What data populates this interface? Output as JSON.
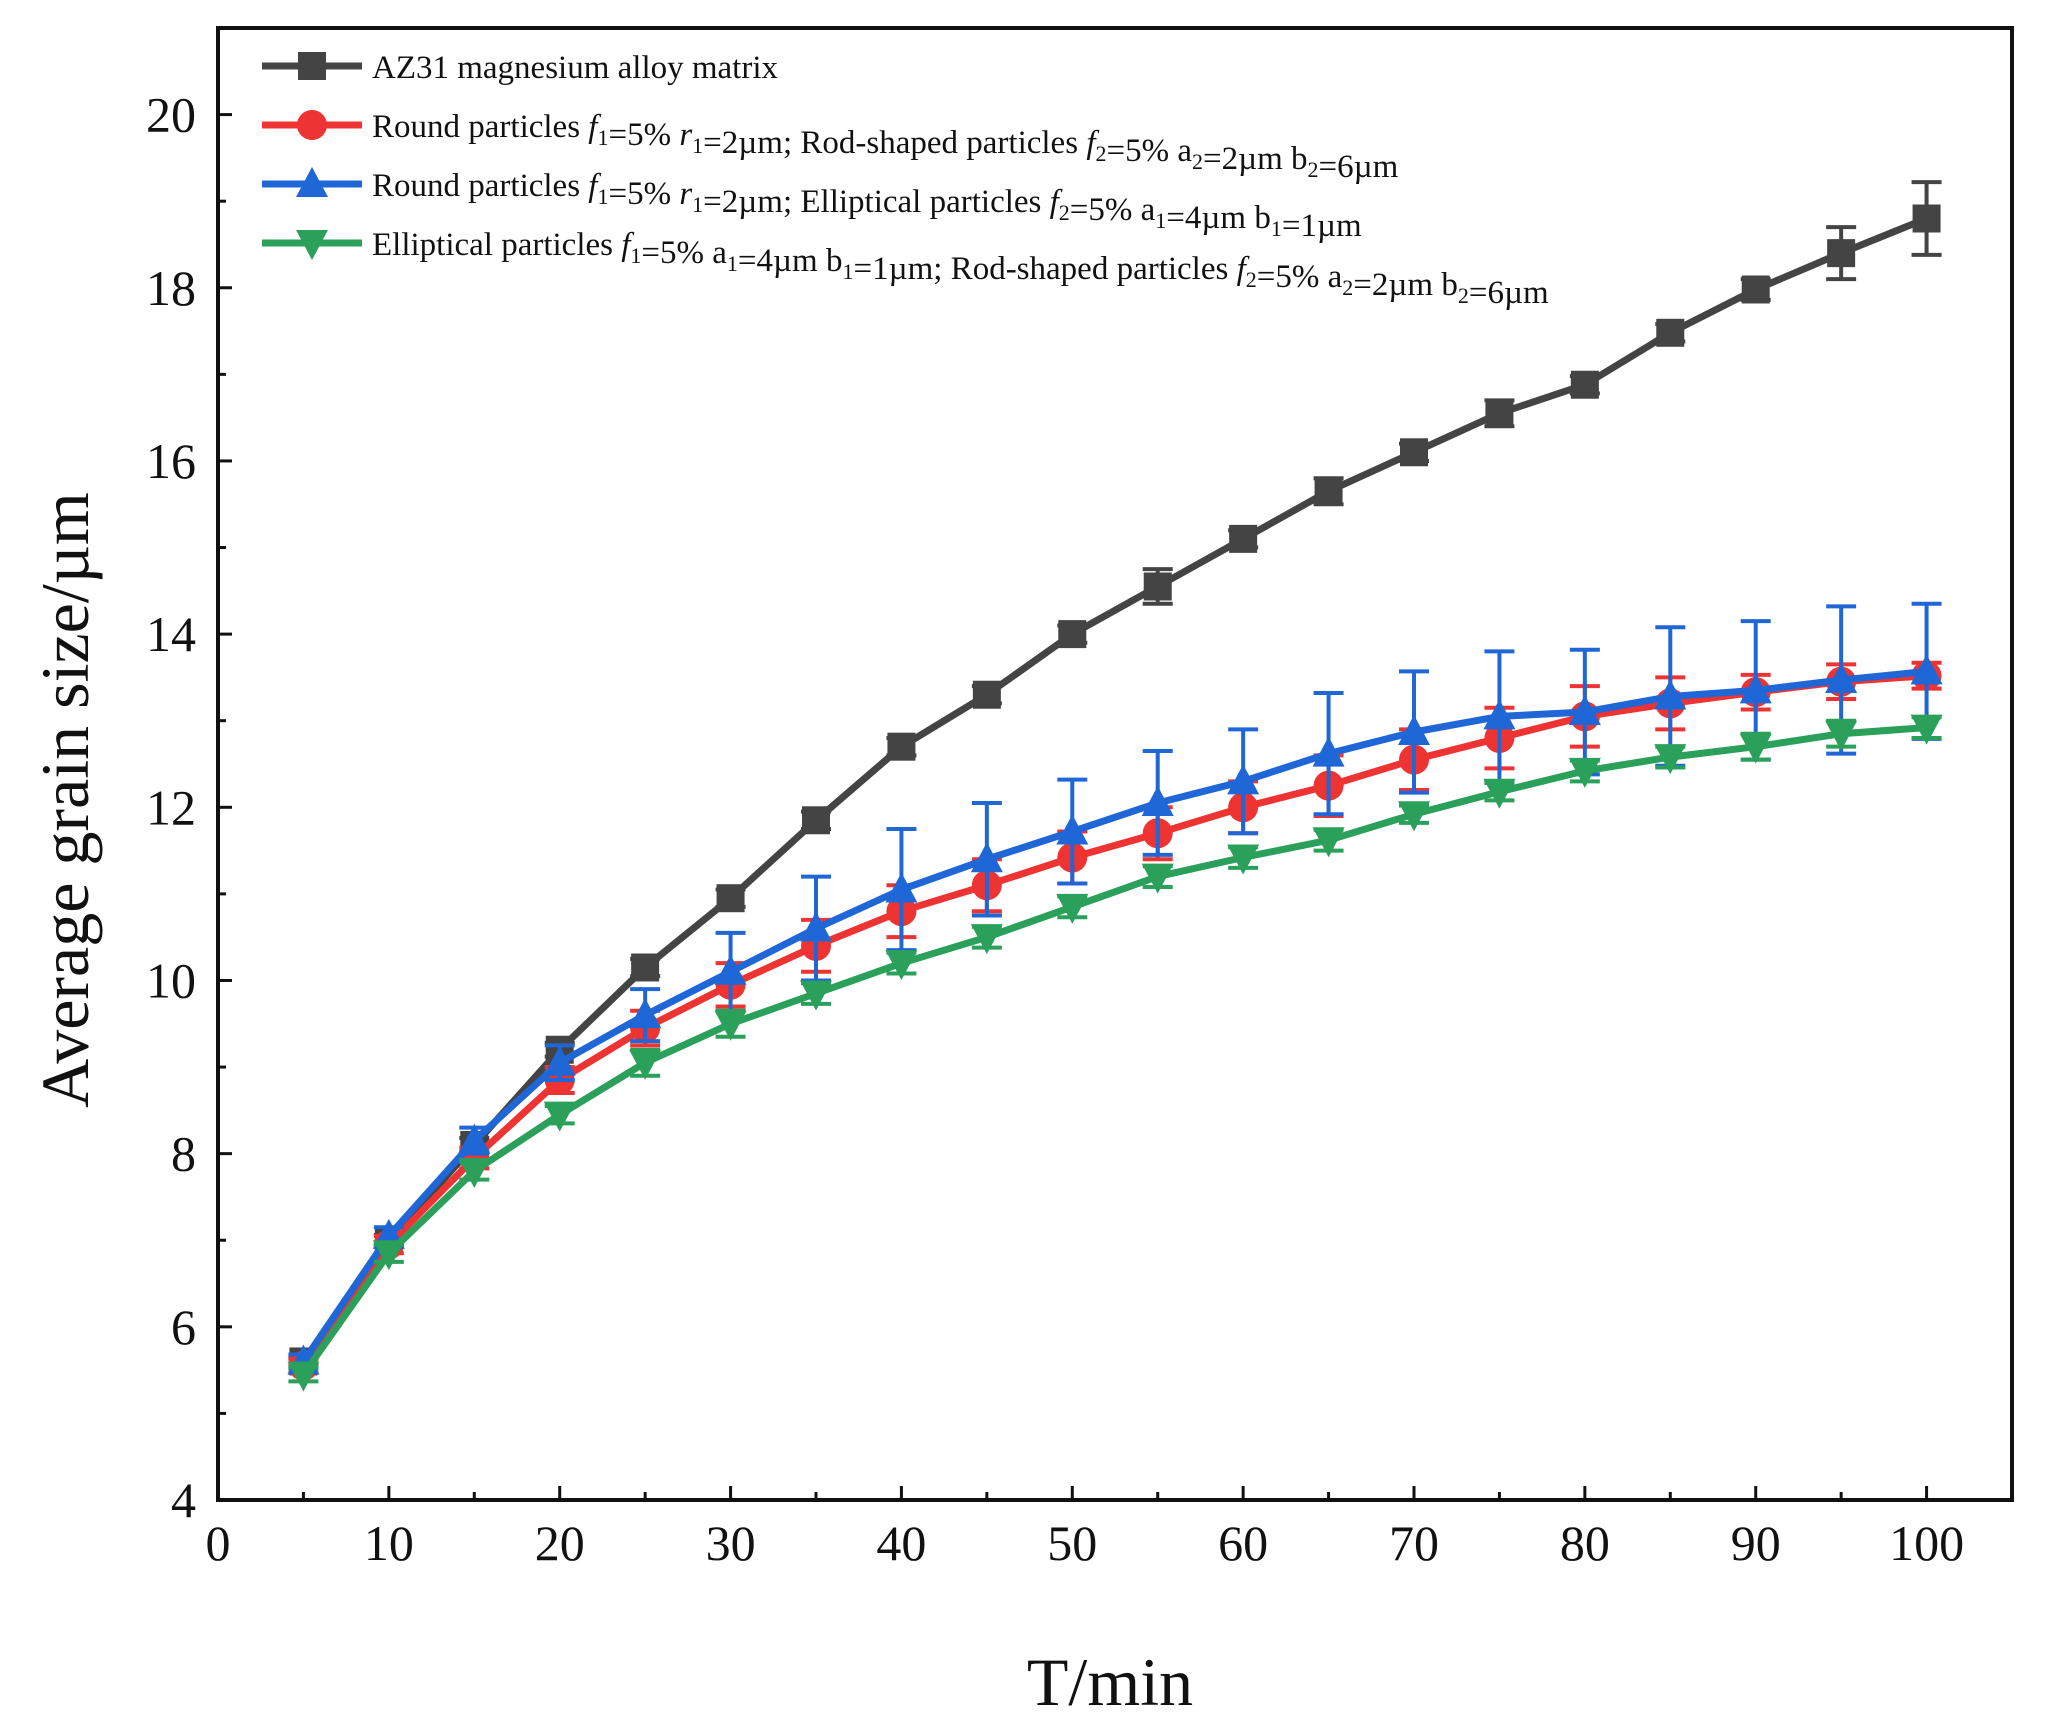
{
  "chart_data": {
    "type": "line",
    "title": "",
    "xlabel": "T/min",
    "ylabel": "Average grain size/µm",
    "xlim": [
      0,
      105
    ],
    "ylim": [
      4,
      21
    ],
    "xticks": [
      0,
      10,
      20,
      30,
      40,
      50,
      60,
      70,
      80,
      90,
      100
    ],
    "yticks": [
      4,
      6,
      8,
      10,
      12,
      14,
      16,
      18,
      20
    ],
    "legend_position": "top-left",
    "x": [
      5,
      10,
      15,
      20,
      25,
      30,
      35,
      40,
      45,
      50,
      55,
      60,
      65,
      70,
      75,
      80,
      85,
      90,
      95,
      100
    ],
    "series": [
      {
        "name": "AZ31 magnesium alloy matrix",
        "legend": [
          {
            "t": "AZ31 magnesium alloy matrix"
          }
        ],
        "color": "#444444",
        "marker": "square",
        "values": [
          5.6,
          7.0,
          8.1,
          9.2,
          10.15,
          10.95,
          11.85,
          12.7,
          13.3,
          14.0,
          14.55,
          15.1,
          15.65,
          16.1,
          16.55,
          16.88,
          17.48,
          17.98,
          18.4,
          18.8
        ],
        "errors": [
          0.05,
          0.06,
          0.08,
          0.08,
          0.1,
          0.1,
          0.1,
          0.1,
          0.1,
          0.1,
          0.2,
          0.1,
          0.15,
          0.1,
          0.15,
          0.1,
          0.1,
          0.12,
          0.3,
          0.42
        ]
      },
      {
        "name": "Round particles f1=5% r1=2µm; Rod-shaped particles f2=5% a2=2µm b2=6µm",
        "legend": [
          {
            "t": "Round particles "
          },
          {
            "t": "f",
            "i": true
          },
          {
            "t": "1",
            "sub": true
          },
          {
            "t": "=5% "
          },
          {
            "t": "r",
            "i": true
          },
          {
            "t": "1",
            "sub": true
          },
          {
            "t": "=2µm; Rod-shaped particles "
          },
          {
            "t": "f",
            "i": true
          },
          {
            "t": "2",
            "sub": true
          },
          {
            "t": "=5% a"
          },
          {
            "t": "2",
            "sub": true
          },
          {
            "t": "=2µm b"
          },
          {
            "t": "2",
            "sub": true
          },
          {
            "t": "=6µm"
          }
        ],
        "color": "#ee3333",
        "marker": "circle",
        "values": [
          5.55,
          6.95,
          7.95,
          8.85,
          9.45,
          9.95,
          10.4,
          10.8,
          11.1,
          11.42,
          11.7,
          12.0,
          12.25,
          12.55,
          12.8,
          13.05,
          13.2,
          13.33,
          13.45,
          13.52
        ],
        "errors": [
          0.08,
          0.1,
          0.12,
          0.15,
          0.2,
          0.25,
          0.3,
          0.3,
          0.3,
          0.3,
          0.3,
          0.3,
          0.35,
          0.35,
          0.35,
          0.35,
          0.3,
          0.2,
          0.2,
          0.15
        ]
      },
      {
        "name": "Round particles f1=5% r1=2µm; Elliptical particles f2=5% a1=4µm b1=1µm",
        "legend": [
          {
            "t": "Round particles "
          },
          {
            "t": "f",
            "i": true
          },
          {
            "t": "1",
            "sub": true
          },
          {
            "t": "=5% "
          },
          {
            "t": "r",
            "i": true
          },
          {
            "t": "1",
            "sub": true
          },
          {
            "t": "=2µm; Elliptical particles "
          },
          {
            "t": "f",
            "i": true
          },
          {
            "t": "2",
            "sub": true
          },
          {
            "t": "=5% a"
          },
          {
            "t": "1",
            "sub": true
          },
          {
            "t": "=4µm b"
          },
          {
            "t": "1",
            "sub": true
          },
          {
            "t": "=1µm"
          }
        ],
        "color": "#1f66d6",
        "marker": "triangle-up",
        "values": [
          5.6,
          7.05,
          8.15,
          9.05,
          9.6,
          10.1,
          10.6,
          11.05,
          11.4,
          11.72,
          12.05,
          12.3,
          12.62,
          12.87,
          13.05,
          13.1,
          13.28,
          13.35,
          13.47,
          13.57
        ],
        "errors": [
          0.08,
          0.1,
          0.15,
          0.2,
          0.3,
          0.45,
          0.6,
          0.7,
          0.65,
          0.6,
          0.6,
          0.6,
          0.7,
          0.7,
          0.75,
          0.72,
          0.8,
          0.8,
          0.85,
          0.78
        ]
      },
      {
        "name": "Elliptical particles f1=5% a1=4µm b1=1µm; Rod-shaped particles f2=5% a2=2µm b2=6µm",
        "legend": [
          {
            "t": "Elliptical particles "
          },
          {
            "t": "f",
            "i": true
          },
          {
            "t": "1",
            "sub": true
          },
          {
            "t": "=5% a"
          },
          {
            "t": "1",
            "sub": true
          },
          {
            "t": "=4µm b"
          },
          {
            "t": "1",
            "sub": true
          },
          {
            "t": "=1µm; Rod-shaped particles "
          },
          {
            "t": "f",
            "i": true
          },
          {
            "t": "2",
            "sub": true
          },
          {
            "t": "=5% a"
          },
          {
            "t": "2",
            "sub": true
          },
          {
            "t": "=2µm b"
          },
          {
            "t": "2",
            "sub": true
          },
          {
            "t": "=6µm"
          }
        ],
        "color": "#2aa05a",
        "marker": "triangle-down",
        "values": [
          5.45,
          6.85,
          7.8,
          8.45,
          9.05,
          9.5,
          9.85,
          10.2,
          10.5,
          10.85,
          11.2,
          11.42,
          11.62,
          11.92,
          12.18,
          12.42,
          12.58,
          12.7,
          12.85,
          12.92
        ],
        "errors": [
          0.08,
          0.1,
          0.1,
          0.1,
          0.15,
          0.15,
          0.12,
          0.12,
          0.12,
          0.12,
          0.12,
          0.12,
          0.12,
          0.1,
          0.1,
          0.12,
          0.12,
          0.15,
          0.15,
          0.12
        ]
      }
    ]
  }
}
